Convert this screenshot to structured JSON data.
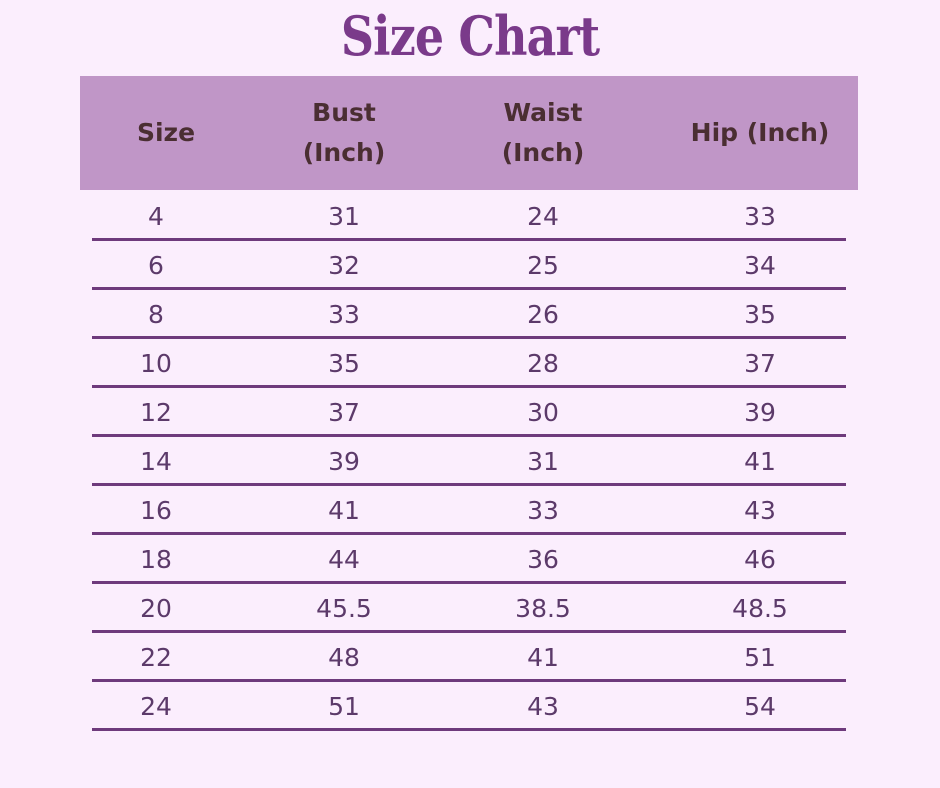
{
  "title": "Size Chart",
  "colors": {
    "background": "#fbeefd",
    "header": "#c096c7",
    "title": "#7a3a8a",
    "rule": "#6e3a7c"
  },
  "table": {
    "headers": [
      "Size",
      "Bust\n(Inch)",
      "Waist\n(Inch)",
      "Hip (Inch)"
    ],
    "rows": [
      [
        "4",
        "31",
        "24",
        "33"
      ],
      [
        "6",
        "32",
        "25",
        "34"
      ],
      [
        "8",
        "33",
        "26",
        "35"
      ],
      [
        "10",
        "35",
        "28",
        "37"
      ],
      [
        "12",
        "37",
        "30",
        "39"
      ],
      [
        "14",
        "39",
        "31",
        "41"
      ],
      [
        "16",
        "41",
        "33",
        "43"
      ],
      [
        "18",
        "44",
        "36",
        "46"
      ],
      [
        "20",
        "45.5",
        "38.5",
        "48.5"
      ],
      [
        "22",
        "48",
        "41",
        "51"
      ],
      [
        "24",
        "51",
        "43",
        "54"
      ]
    ]
  }
}
